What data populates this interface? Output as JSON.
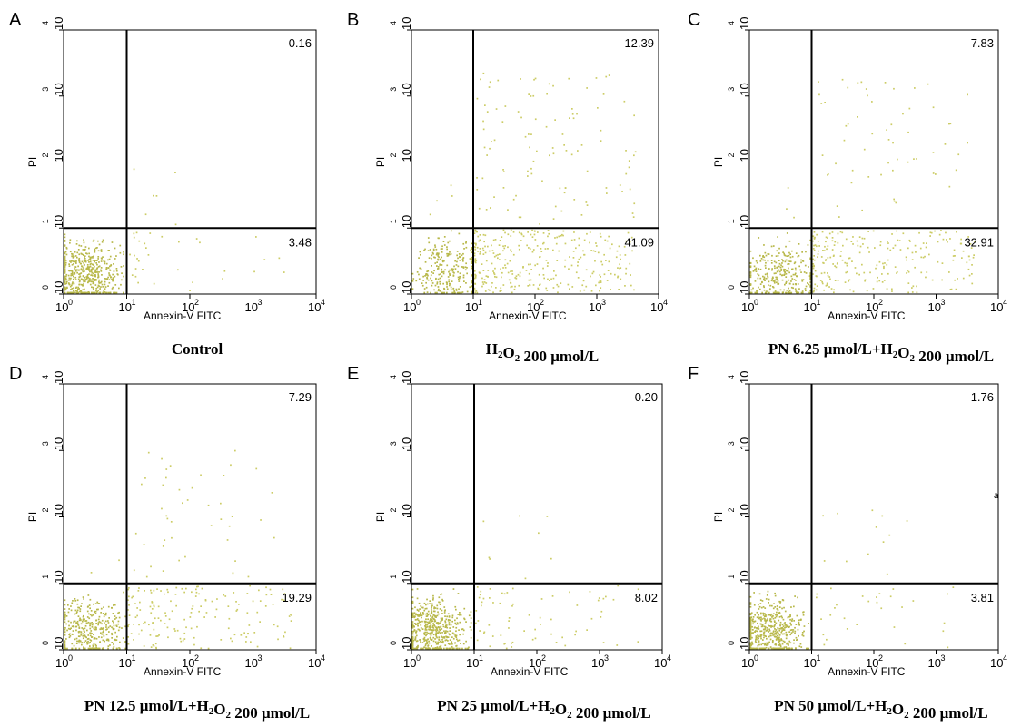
{
  "colors": {
    "dot": "#cccc66",
    "dot_dense": "#b8b84a",
    "axis": "#000000"
  },
  "stray_mark": "a",
  "chart_data": [
    {
      "type": "scatter",
      "panel": "A",
      "caption": [
        {
          "t": "Control"
        }
      ],
      "xlabel": "Annexin-V FITC",
      "ylabel": "PI",
      "xscale": "log",
      "yscale": "log",
      "xlim": [
        1,
        10000
      ],
      "ylim": [
        1,
        10000
      ],
      "xticks": [
        "10",
        "10",
        "10",
        "10",
        "10"
      ],
      "xtick_exponents": [
        "0",
        "1",
        "2",
        "3",
        "4"
      ],
      "yticks": [
        "10",
        "10",
        "10",
        "10",
        "10"
      ],
      "ytick_exponents": [
        "0",
        "1",
        "2",
        "3",
        "4"
      ],
      "gates": {
        "x": 10,
        "y": 10
      },
      "quadrant_values": {
        "upper_right": "0.16",
        "lower_right": "3.48"
      },
      "population": {
        "ll": 520,
        "lr": 32,
        "ur": 6,
        "ul": 0,
        "ll_x_log": [
          0.0,
          0.95
        ],
        "ll_y_log": [
          0.0,
          0.95
        ],
        "ll_center": [
          0.35,
          0.3
        ],
        "ur_spread": [
          0.55,
          0.9
        ]
      }
    },
    {
      "type": "scatter",
      "panel": "B",
      "caption": [
        {
          "t": "H"
        },
        {
          "t": "2",
          "sub": true
        },
        {
          "t": "O"
        },
        {
          "t": "2",
          "sub": true
        },
        {
          "t": " 200 μmol/L"
        }
      ],
      "xlabel": "Annexin-V FITC",
      "ylabel": "PI",
      "xscale": "log",
      "yscale": "log",
      "xlim": [
        1,
        10000
      ],
      "ylim": [
        1,
        10000
      ],
      "xticks": [
        "10",
        "10",
        "10",
        "10",
        "10"
      ],
      "xtick_exponents": [
        "0",
        "1",
        "2",
        "3",
        "4"
      ],
      "yticks": [
        "10",
        "10",
        "10",
        "10",
        "10"
      ],
      "ytick_exponents": [
        "0",
        "1",
        "2",
        "3",
        "4"
      ],
      "gates": {
        "x": 10,
        "y": 10
      },
      "quadrant_values": {
        "upper_right": "12.39",
        "lower_right": "41.09"
      },
      "population": {
        "ll": 260,
        "lr": 330,
        "ur": 110,
        "ul": 4,
        "ll_x_log": [
          0.0,
          0.98
        ],
        "ll_y_log": [
          0.0,
          0.98
        ],
        "ll_center": [
          0.6,
          0.35
        ],
        "ur_spread": [
          1.1,
          2.3
        ]
      }
    },
    {
      "type": "scatter",
      "panel": "C",
      "caption": [
        {
          "t": "PN 6.25 μmol/L+H"
        },
        {
          "t": "2",
          "sub": true
        },
        {
          "t": "O"
        },
        {
          "t": "2",
          "sub": true
        },
        {
          "t": " 200 μmol/L"
        }
      ],
      "xlabel": "Annexin-V FITC",
      "ylabel": "PI",
      "xscale": "log",
      "yscale": "log",
      "xlim": [
        1,
        10000
      ],
      "ylim": [
        1,
        10000
      ],
      "xticks": [
        "10",
        "10",
        "10",
        "10",
        "10"
      ],
      "xtick_exponents": [
        "0",
        "1",
        "2",
        "3",
        "4"
      ],
      "yticks": [
        "10",
        "10",
        "10",
        "10",
        "10"
      ],
      "ytick_exponents": [
        "0",
        "1",
        "2",
        "3",
        "4"
      ],
      "gates": {
        "x": 10,
        "y": 10
      },
      "quadrant_values": {
        "upper_right": "7.83",
        "lower_right": "32.91"
      },
      "population": {
        "ll": 300,
        "lr": 250,
        "ur": 60,
        "ul": 3,
        "ll_x_log": [
          0.0,
          0.98
        ],
        "ll_y_log": [
          0.0,
          0.95
        ],
        "ll_center": [
          0.5,
          0.3
        ],
        "ur_spread": [
          1.0,
          2.2
        ]
      }
    },
    {
      "type": "scatter",
      "panel": "D",
      "caption": [
        {
          "t": "PN 12.5 μmol/L+H"
        },
        {
          "t": "2",
          "sub": true
        },
        {
          "t": "O"
        },
        {
          "t": "2",
          "sub": true
        },
        {
          "t": " 200 μmol/L"
        }
      ],
      "xlabel": "Annexin-V FITC",
      "ylabel": "PI",
      "xscale": "log",
      "yscale": "log",
      "xlim": [
        1,
        10000
      ],
      "ylim": [
        1,
        10000
      ],
      "xticks": [
        "10",
        "10",
        "10",
        "10",
        "10"
      ],
      "xtick_exponents": [
        "0",
        "1",
        "2",
        "3",
        "4"
      ],
      "yticks": [
        "10",
        "10",
        "10",
        "10",
        "10"
      ],
      "ytick_exponents": [
        "0",
        "1",
        "2",
        "3",
        "4"
      ],
      "gates": {
        "x": 10,
        "y": 10
      },
      "quadrant_values": {
        "upper_right": "7.29",
        "lower_right": "19.29"
      },
      "population": {
        "ll": 360,
        "lr": 170,
        "ur": 45,
        "ul": 2,
        "ll_x_log": [
          0.0,
          0.98
        ],
        "ll_y_log": [
          0.0,
          0.95
        ],
        "ll_center": [
          0.45,
          0.3
        ],
        "ur_spread": [
          1.0,
          2.1
        ]
      }
    },
    {
      "type": "scatter",
      "panel": "E",
      "caption": [
        {
          "t": "PN 25 μmol/L+H"
        },
        {
          "t": "2",
          "sub": true
        },
        {
          "t": "O"
        },
        {
          "t": "2",
          "sub": true
        },
        {
          "t": " 200 μmol/L"
        }
      ],
      "xlabel": "Annexin-V FITC",
      "ylabel": "PI",
      "xscale": "log",
      "yscale": "log",
      "xlim": [
        1,
        10000
      ],
      "ylim": [
        1,
        10000
      ],
      "xticks": [
        "10",
        "10",
        "10",
        "10",
        "10"
      ],
      "xtick_exponents": [
        "0",
        "1",
        "2",
        "3",
        "4"
      ],
      "yticks": [
        "10",
        "10",
        "10",
        "10",
        "10"
      ],
      "ytick_exponents": [
        "0",
        "1",
        "2",
        "3",
        "4"
      ],
      "gates": {
        "x": 10,
        "y": 10
      },
      "quadrant_values": {
        "upper_right": "0.20",
        "lower_right": "8.02"
      },
      "population": {
        "ll": 520,
        "lr": 70,
        "ur": 8,
        "ul": 0,
        "ll_x_log": [
          0.0,
          0.95
        ],
        "ll_y_log": [
          0.0,
          0.95
        ],
        "ll_center": [
          0.35,
          0.3
        ],
        "ur_spread": [
          0.5,
          1.0
        ]
      }
    },
    {
      "type": "scatter",
      "panel": "F",
      "caption": [
        {
          "t": "PN 50 μmol/L+H"
        },
        {
          "t": "2",
          "sub": true
        },
        {
          "t": "O"
        },
        {
          "t": "2",
          "sub": true
        },
        {
          "t": " 200 μmol/L"
        }
      ],
      "xlabel": "Annexin-V FITC",
      "ylabel": "PI",
      "xscale": "log",
      "yscale": "log",
      "xlim": [
        1,
        10000
      ],
      "ylim": [
        1,
        10000
      ],
      "xticks": [
        "10",
        "10",
        "10",
        "10",
        "10"
      ],
      "xtick_exponents": [
        "0",
        "1",
        "2",
        "3",
        "4"
      ],
      "yticks": [
        "10",
        "10",
        "10",
        "10",
        "10"
      ],
      "ytick_exponents": [
        "0",
        "1",
        "2",
        "3",
        "4"
      ],
      "gates": {
        "x": 10,
        "y": 10
      },
      "quadrant_values": {
        "upper_right": "1.76",
        "lower_right": "3.81"
      },
      "population": {
        "ll": 480,
        "lr": 30,
        "ur": 12,
        "ul": 0,
        "ll_x_log": [
          0.0,
          0.95
        ],
        "ll_y_log": [
          0.0,
          0.95
        ],
        "ll_center": [
          0.35,
          0.3
        ],
        "ur_spread": [
          0.6,
          1.2
        ]
      }
    }
  ]
}
